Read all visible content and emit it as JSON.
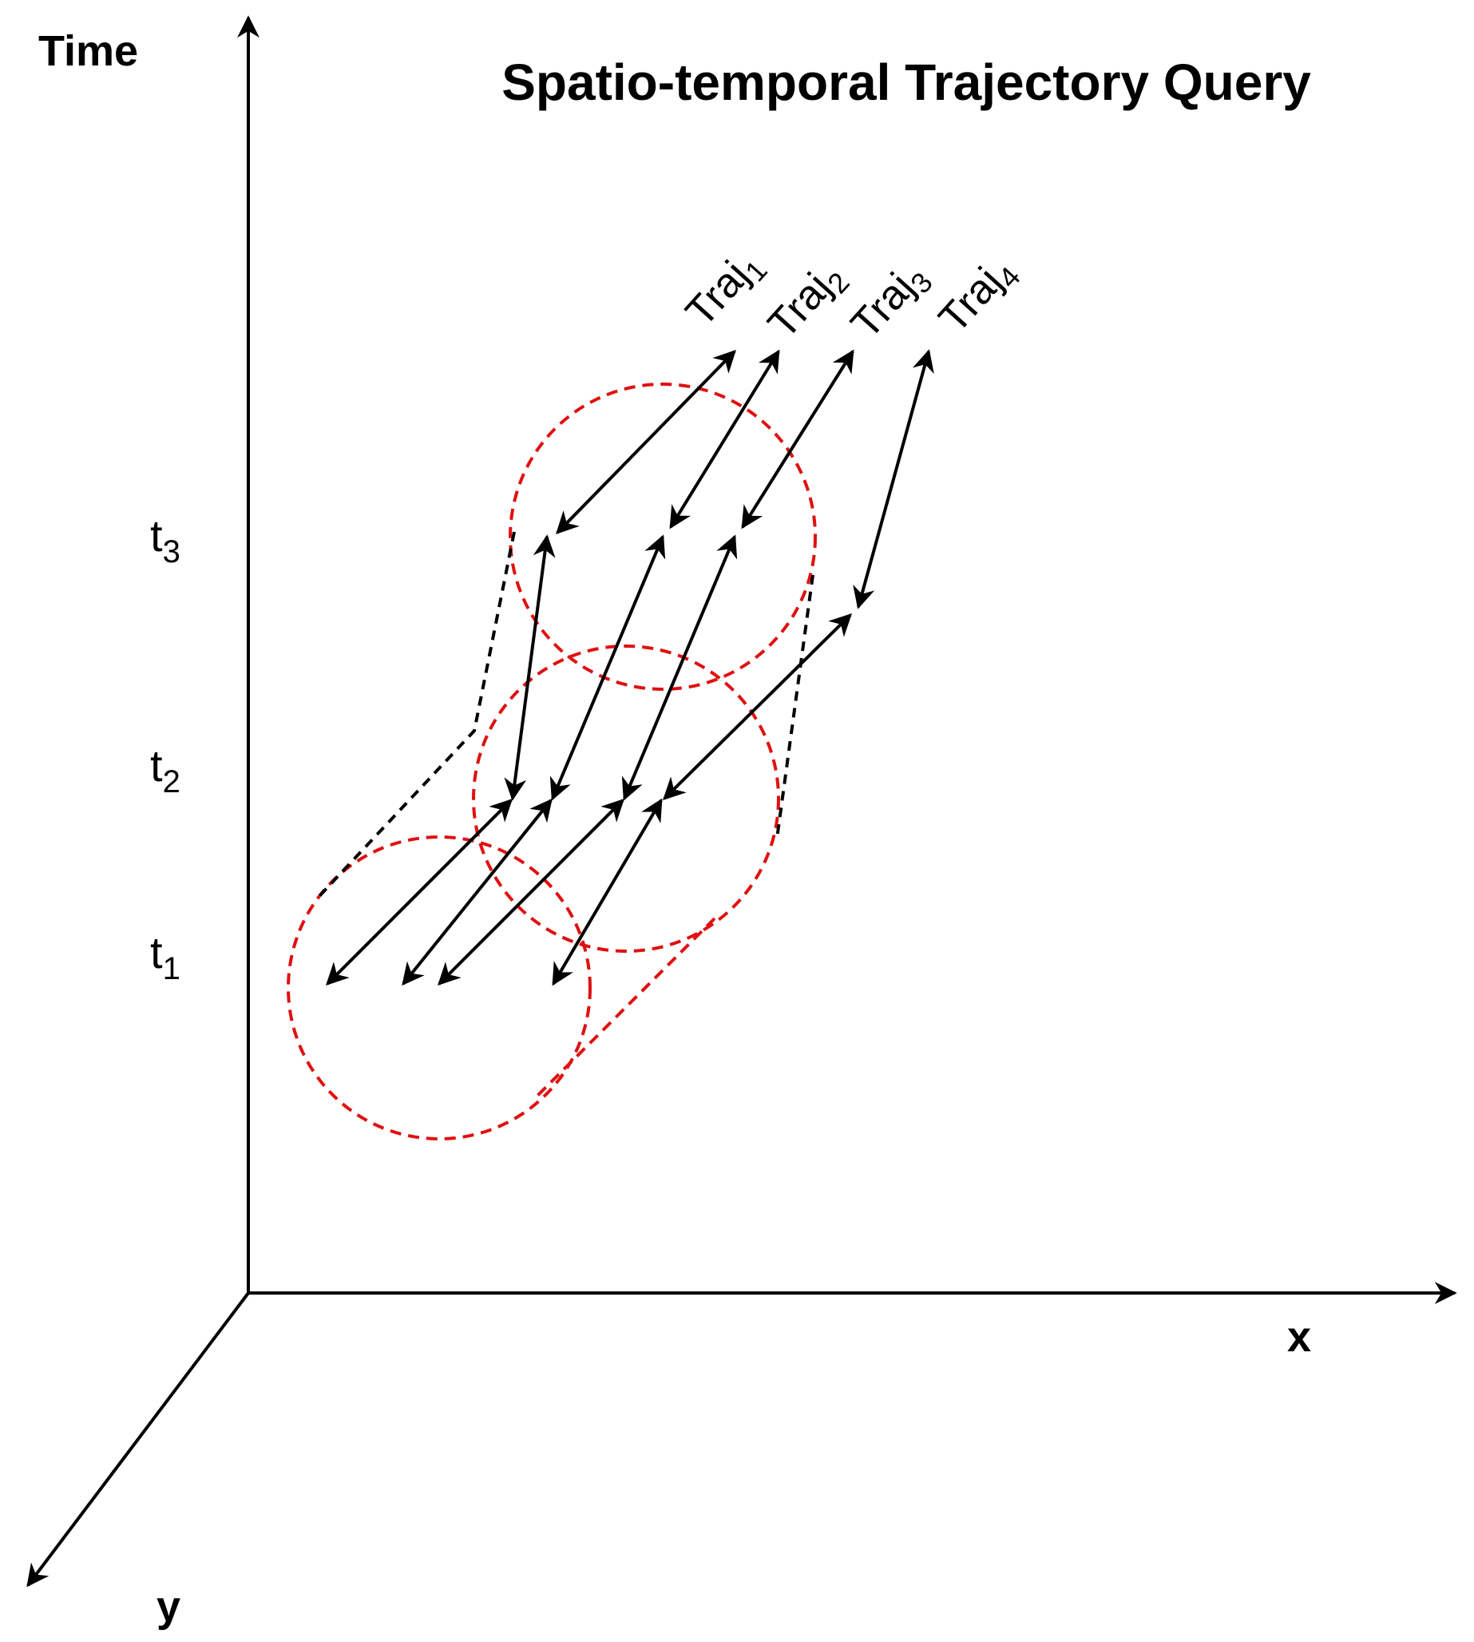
{
  "title": "Spatio-temporal Trajectory Query",
  "axes": {
    "time": "Time",
    "x": "x",
    "y": "y"
  },
  "time_marks": [
    {
      "base": "t",
      "sub": "1"
    },
    {
      "base": "t",
      "sub": "2"
    },
    {
      "base": "t",
      "sub": "3"
    }
  ],
  "trajectories": [
    {
      "base": "Traj",
      "sub": "1"
    },
    {
      "base": "Traj",
      "sub": "2"
    },
    {
      "base": "Traj",
      "sub": "3"
    },
    {
      "base": "Traj",
      "sub": "4"
    }
  ],
  "colors": {
    "axis": "#000000",
    "trajectory": "#000000",
    "query_region": "#e01010",
    "sweep_outline": "#000000"
  }
}
